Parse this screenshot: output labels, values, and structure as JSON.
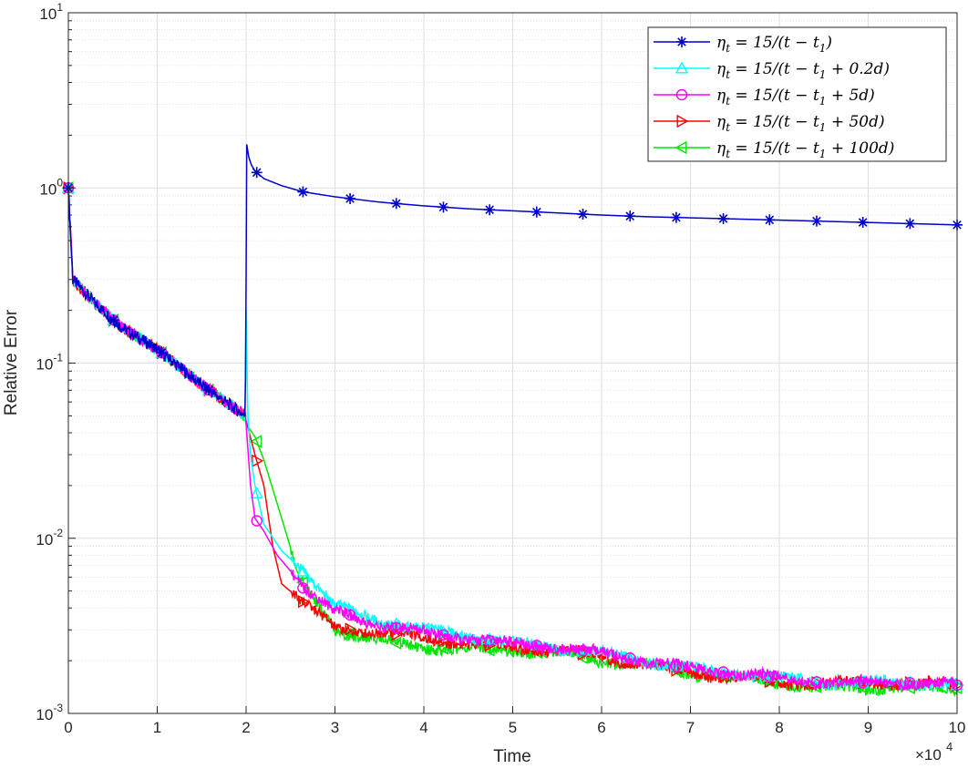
{
  "chart_data": {
    "type": "line",
    "xlabel": "Time",
    "ylabel": "Relative Error",
    "x_exponent_label": "×10",
    "x_exponent_power": "4",
    "x_scale_factor": 10000,
    "xlim": [
      0,
      10
    ],
    "ylim": [
      0.001,
      10
    ],
    "yscale": "log",
    "grid": true,
    "minor_grid": true,
    "legend_position": "top-right",
    "x_ticks": [
      "0",
      "1",
      "2",
      "3",
      "4",
      "5",
      "6",
      "7",
      "8",
      "9",
      "10"
    ],
    "y_ticks": [
      {
        "base": "10",
        "exp": "1",
        "value": 10
      },
      {
        "base": "10",
        "exp": "0",
        "value": 1
      },
      {
        "base": "10",
        "exp": "-1",
        "value": 0.1
      },
      {
        "base": "10",
        "exp": "-2",
        "value": 0.01
      },
      {
        "base": "10",
        "exp": "-3",
        "value": 0.001
      }
    ],
    "series": [
      {
        "name": "ηt = 15/(t − t1)",
        "legend_main": "η",
        "legend_sub": "t",
        "legend_rest": " = 15/(t − t",
        "legend_sub2": "1",
        "legend_tail": ")",
        "color": "#0000cc",
        "marker": "asterisk",
        "x": [
          0,
          0.05,
          0.3,
          0.6,
          1.0,
          1.5,
          1.99,
          2.0,
          2.005,
          2.03,
          2.06,
          2.1,
          2.2,
          2.4,
          2.64,
          3.0,
          3.5,
          4.0,
          4.5,
          5.0,
          5.5,
          6.0,
          6.5,
          7.0,
          7.5,
          8.0,
          8.5,
          9.0,
          9.5,
          10.0
        ],
        "y": [
          1.0,
          0.3,
          0.22,
          0.16,
          0.12,
          0.075,
          0.05,
          0.3,
          1.8,
          1.5,
          1.35,
          1.25,
          1.13,
          1.03,
          0.95,
          0.89,
          0.83,
          0.79,
          0.76,
          0.74,
          0.72,
          0.7,
          0.685,
          0.675,
          0.665,
          0.655,
          0.645,
          0.635,
          0.625,
          0.615
        ],
        "marker_x": [
          0.0,
          0.51,
          1.05,
          1.58,
          2.12,
          2.64,
          3.17,
          3.69,
          4.22,
          4.74,
          5.27,
          5.79,
          6.32,
          6.84,
          7.37,
          7.89,
          8.42,
          8.94,
          9.47,
          10.0
        ]
      },
      {
        "name": "ηt = 15/(t − t1 + 0.2d)",
        "legend_main": "η",
        "legend_sub": "t",
        "legend_rest": " = 15/(t − t",
        "legend_sub2": "1",
        "legend_tail": " + 0.2d)",
        "color": "#00ffff",
        "marker": "triangle-up",
        "x": [
          0,
          0.05,
          0.3,
          0.6,
          1.0,
          1.5,
          1.99,
          2.0,
          2.02,
          2.05,
          2.1,
          2.2,
          2.4,
          2.6,
          3.0,
          3.5,
          4.0,
          4.5,
          5.0,
          5.5,
          6.0,
          6.5,
          7.0,
          7.5,
          8.0,
          8.5,
          9.0,
          9.5,
          10.0
        ],
        "y": [
          1.0,
          0.3,
          0.22,
          0.16,
          0.12,
          0.075,
          0.05,
          0.2,
          0.05,
          0.03,
          0.02,
          0.012,
          0.0085,
          0.0068,
          0.0041,
          0.0034,
          0.003,
          0.0028,
          0.0025,
          0.0024,
          0.0022,
          0.002,
          0.0018,
          0.0017,
          0.0016,
          0.0015,
          0.0015,
          0.0015,
          0.00145
        ],
        "marker_x": [
          0.0,
          0.51,
          1.05,
          1.58,
          2.12,
          2.64,
          3.17,
          3.69,
          4.22,
          4.74,
          5.27,
          5.79,
          6.32,
          6.84,
          7.37,
          7.89,
          8.42,
          8.94,
          9.47,
          10.0
        ]
      },
      {
        "name": "ηt = 15/(t − t1 + 5d)",
        "legend_main": "η",
        "legend_sub": "t",
        "legend_rest": " = 15/(t − t",
        "legend_sub2": "1",
        "legend_tail": " + 5d)",
        "color": "#ff00ff",
        "marker": "circle",
        "x": [
          0,
          0.05,
          0.3,
          0.6,
          1.0,
          1.5,
          1.99,
          2.0,
          2.05,
          2.1,
          2.2,
          2.35,
          2.5,
          2.64,
          3.0,
          3.5,
          4.0,
          4.5,
          5.0,
          5.5,
          6.0,
          6.5,
          7.0,
          7.5,
          8.0,
          8.5,
          9.0,
          9.5,
          10.0
        ],
        "y": [
          1.0,
          0.3,
          0.22,
          0.16,
          0.12,
          0.075,
          0.05,
          0.045,
          0.02,
          0.013,
          0.011,
          0.008,
          0.0065,
          0.0052,
          0.0039,
          0.0032,
          0.0029,
          0.0027,
          0.0025,
          0.0024,
          0.0022,
          0.002,
          0.0018,
          0.0017,
          0.0016,
          0.0015,
          0.0015,
          0.0015,
          0.00145
        ],
        "marker_x": [
          0.0,
          0.51,
          1.05,
          1.58,
          2.12,
          2.64,
          3.17,
          3.69,
          4.22,
          4.74,
          5.27,
          5.79,
          6.32,
          6.84,
          7.37,
          7.89,
          8.42,
          8.94,
          9.47,
          10.0
        ]
      },
      {
        "name": "ηt = 15/(t − t1 + 50d)",
        "legend_main": "η",
        "legend_sub": "t",
        "legend_rest": " = 15/(t − t",
        "legend_sub2": "1",
        "legend_tail": " + 50d)",
        "color": "#ff0000",
        "marker": "triangle-right",
        "x": [
          0,
          0.05,
          0.3,
          0.6,
          1.0,
          1.5,
          1.99,
          2.0,
          2.1,
          2.2,
          2.3,
          2.4,
          2.6,
          2.9,
          3.0,
          3.5,
          4.0,
          4.5,
          5.0,
          5.5,
          6.0,
          6.5,
          7.0,
          7.5,
          8.0,
          8.5,
          9.0,
          9.5,
          10.0
        ],
        "y": [
          1.0,
          0.3,
          0.22,
          0.16,
          0.12,
          0.075,
          0.05,
          0.047,
          0.03,
          0.02,
          0.009,
          0.0055,
          0.0045,
          0.0035,
          0.0031,
          0.0029,
          0.0027,
          0.0025,
          0.0024,
          0.0023,
          0.0021,
          0.0019,
          0.0017,
          0.0016,
          0.0015,
          0.0015,
          0.0015,
          0.0015,
          0.00145
        ],
        "marker_x": [
          0.0,
          0.51,
          1.05,
          1.58,
          2.12,
          2.64,
          3.17,
          3.69,
          4.22,
          4.74,
          5.27,
          5.79,
          6.32,
          6.84,
          7.37,
          7.89,
          8.42,
          8.94,
          9.47,
          10.0
        ]
      },
      {
        "name": "ηt = 15/(t − t1 + 100d)",
        "legend_main": "η",
        "legend_sub": "t",
        "legend_rest": " = 15/(t − t",
        "legend_sub2": "1",
        "legend_tail": " + 100d)",
        "color": "#00e600",
        "marker": "triangle-left",
        "x": [
          0,
          0.05,
          0.3,
          0.6,
          1.0,
          1.5,
          1.99,
          2.0,
          2.1,
          2.2,
          2.4,
          2.6,
          2.8,
          3.0,
          3.5,
          4.0,
          4.5,
          5.0,
          5.5,
          6.0,
          6.5,
          7.0,
          7.5,
          8.0,
          8.5,
          9.0,
          9.5,
          10.0
        ],
        "y": [
          1.0,
          0.3,
          0.22,
          0.16,
          0.12,
          0.075,
          0.05,
          0.045,
          0.038,
          0.028,
          0.013,
          0.006,
          0.0042,
          0.003,
          0.0026,
          0.0024,
          0.0023,
          0.0023,
          0.0022,
          0.002,
          0.0019,
          0.0017,
          0.0016,
          0.0015,
          0.0014,
          0.0014,
          0.0014,
          0.0014
        ],
        "marker_x": [
          0.0,
          0.51,
          1.05,
          1.58,
          2.12,
          2.64,
          3.17,
          3.69,
          4.22,
          4.74,
          5.27,
          5.79,
          6.32,
          6.84,
          7.37,
          7.89,
          8.42,
          8.94,
          9.47,
          10.0
        ]
      }
    ]
  }
}
